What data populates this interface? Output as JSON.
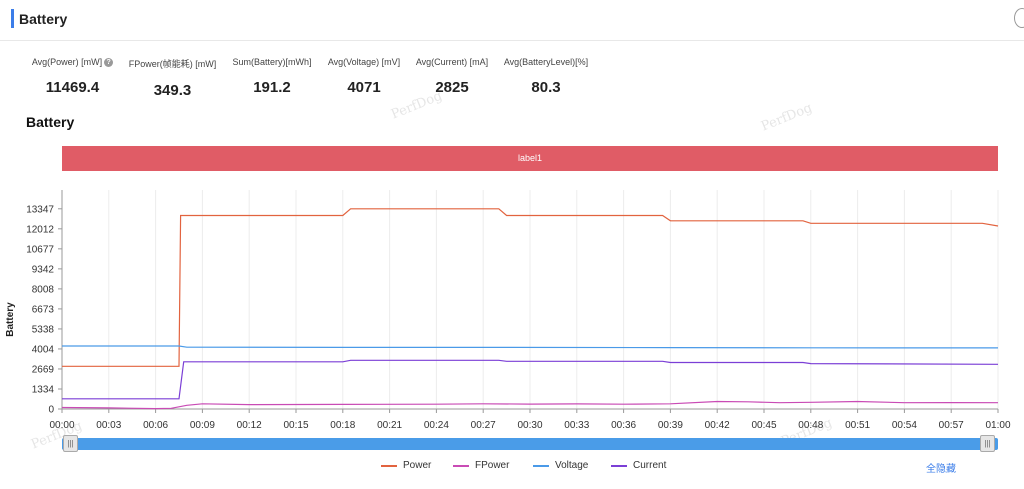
{
  "header": {
    "title": "Battery"
  },
  "stats": [
    {
      "label": "Avg(Power) [mW]",
      "value": "11469.4",
      "help": true
    },
    {
      "label": "FPower(帧能耗) [mW]",
      "value": "349.3"
    },
    {
      "label": "Sum(Battery)[mWh]",
      "value": "191.2"
    },
    {
      "label": "Avg(Voltage) [mV]",
      "value": "4071"
    },
    {
      "label": "Avg(Current) [mA]",
      "value": "2825"
    },
    {
      "label": "Avg(BatteryLevel)[%]",
      "value": "80.3"
    }
  ],
  "section_title": "Battery",
  "watermark": "PerfDog",
  "label_bar": "label1",
  "hide_all": "全隐藏",
  "chart_data": {
    "type": "line",
    "ylabel": "Battery",
    "yticks": [
      "0",
      "1334",
      "2669",
      "4004",
      "5338",
      "6673",
      "8008",
      "9342",
      "10677",
      "12012",
      "13347"
    ],
    "ylim": [
      0,
      14600
    ],
    "xticks": [
      "00:00",
      "00:03",
      "00:06",
      "00:09",
      "00:12",
      "00:15",
      "00:18",
      "00:21",
      "00:24",
      "00:27",
      "00:30",
      "00:33",
      "00:36",
      "00:39",
      "00:42",
      "00:45",
      "00:48",
      "00:51",
      "00:54",
      "00:57",
      "01:00"
    ],
    "xlim": [
      0,
      60
    ],
    "grid": "vertical",
    "legend_position": "bottom",
    "series": [
      {
        "name": "Power",
        "color": "#e2633f",
        "x": [
          0,
          7.5,
          7.6,
          18,
          18.5,
          28,
          28.5,
          38.5,
          39,
          47.5,
          48,
          59,
          60
        ],
        "y": [
          2850,
          2850,
          12900,
          12900,
          13350,
          13350,
          12900,
          12900,
          12550,
          12550,
          12380,
          12380,
          12200
        ]
      },
      {
        "name": "FPower",
        "color": "#c94bb5",
        "x": [
          0,
          3,
          6,
          7,
          8,
          9,
          12,
          18,
          24,
          27,
          30,
          33,
          36,
          39,
          42,
          44,
          46,
          48,
          51,
          54,
          57,
          60
        ],
        "y": [
          100,
          70,
          30,
          50,
          250,
          350,
          290,
          310,
          320,
          350,
          330,
          340,
          320,
          350,
          500,
          480,
          420,
          450,
          500,
          420,
          430,
          420
        ]
      },
      {
        "name": "Voltage",
        "color": "#4a9ae8",
        "x": [
          0,
          7.5,
          8,
          18,
          28,
          39,
          48,
          60
        ],
        "y": [
          4200,
          4200,
          4120,
          4110,
          4110,
          4090,
          4080,
          4071
        ]
      },
      {
        "name": "Current",
        "color": "#7b3fd6",
        "x": [
          0,
          7.5,
          7.8,
          18,
          18.5,
          28,
          28.5,
          38.5,
          39,
          47.5,
          48,
          60
        ],
        "y": [
          680,
          680,
          3150,
          3150,
          3250,
          3250,
          3180,
          3180,
          3100,
          3100,
          3030,
          2980
        ]
      }
    ]
  }
}
